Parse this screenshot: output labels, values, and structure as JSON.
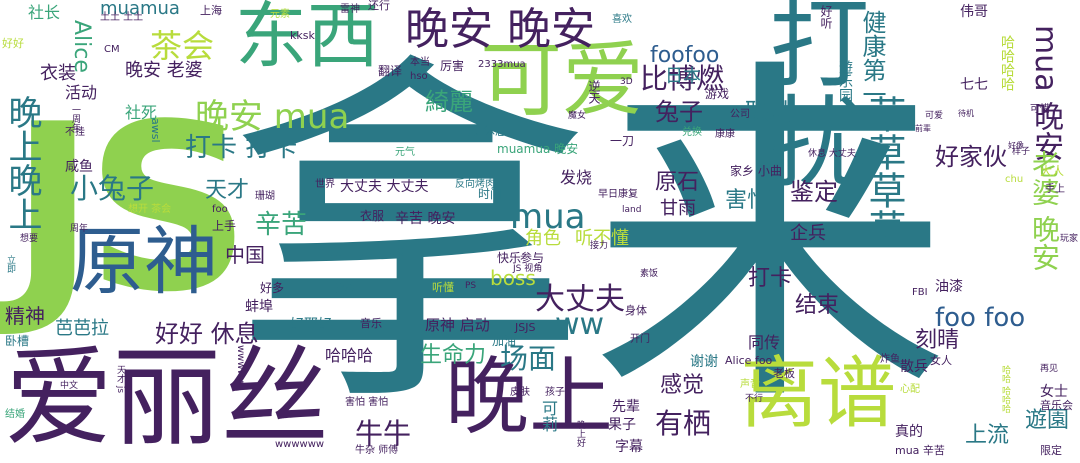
{
  "palette": {
    "teal": "#2a7886",
    "purple": "#44215f",
    "green": "#8fd14f",
    "lime": "#b8dc3c",
    "blue": "#2e5d8f",
    "seagreen": "#3aa57a",
    "gray": "#6b6b6b"
  },
  "words": [
    "拿来",
    "打扰",
    "JS",
    "爱丽丝",
    "东西",
    "可爱",
    "原神",
    "晚上",
    "离谱",
    "晚安 晚安",
    "晚安 mua",
    "晚上晚上",
    "比博燃",
    "茶会",
    "草草草草",
    "健康第一",
    "大丈夫",
    "打卡 打卡",
    "小兔子",
    "mua",
    "mua 晚安",
    "晚安 老婆",
    "foofoo",
    "好好 休息",
    "生命力",
    "场面",
    "有栖",
    "foo foo",
    "老婆 晚安",
    "好家伙",
    "牛牛",
    "ww",
    "鉴定",
    "原石",
    "害怕",
    "天才",
    "辛苦",
    "中国",
    "打卡",
    "结束",
    "刻晴",
    "上流",
    "遊園",
    "感觉",
    "精神",
    "芭芭拉",
    "Alice",
    "muamua",
    "衣装",
    "活动",
    "社死",
    "社长",
    "綺麗",
    "兔子",
    "联动",
    "日本",
    "boss",
    "角色",
    "听不懂",
    "发烧",
    "甘雨",
    "企兵",
    "哈哈哈",
    "同传",
    "谢谢",
    "大丈夫 大丈夫",
    "辛苦 晚安",
    "原神 启动",
    "好耶好",
    "蚌埠",
    "好多",
    "上手",
    "咸鱼",
    "卧槽",
    "可莉",
    "先辈",
    "果子",
    "女士",
    "真的",
    "字幕",
    "可惜",
    "音乐会",
    "散兵",
    "遊乐园",
    "哈哈哈哈",
    "七七",
    "伟哥",
    "好听",
    "翻译",
    "厉害",
    "早点 休息",
    "一刀",
    "兑换",
    "公司",
    "康康",
    "家乡 小曲",
    "衣服",
    "时间",
    "反向烤肉",
    "世界",
    "珊瑚",
    "快乐",
    "参与",
    "muamuamua",
    "muamua 晚安",
    "元气",
    "kksk",
    "游戏",
    "逆天",
    "元素",
    "雷神",
    "还行",
    "喜欢",
    "上海",
    "hso",
    "本当",
    "2333mua",
    "土土 土土",
    "CM",
    "好好",
    "不挂",
    "一周年",
    "foo",
    "想开 茶会",
    "周年",
    "立即",
    "想要",
    "awsl",
    "音乐",
    "比心",
    "加油",
    "身体",
    "老板",
    "声音",
    "Alice foo",
    "wwwww",
    "wwwwww",
    "JSJS",
    "JS 视角",
    "PS",
    "听懂",
    "FBI",
    "油漆",
    "女人",
    "炸鱼",
    "开门",
    "中文",
    "结婚",
    "天才 js",
    "害怕 害怕",
    "皮肤",
    "孩子",
    "不行",
    "心配",
    "哈哈 哈哈哈",
    "再见",
    "限定",
    "mua 辛苦",
    "牛杂 师傅",
    "大人",
    "玩家",
    "手上",
    "chu",
    "样子",
    "休息 大丈夫",
    "可爱",
    "前辈",
    "待机",
    "好像",
    "land",
    "接力",
    "素饭",
    "晚上好",
    "早日康复",
    "魔女",
    "3D"
  ]
}
